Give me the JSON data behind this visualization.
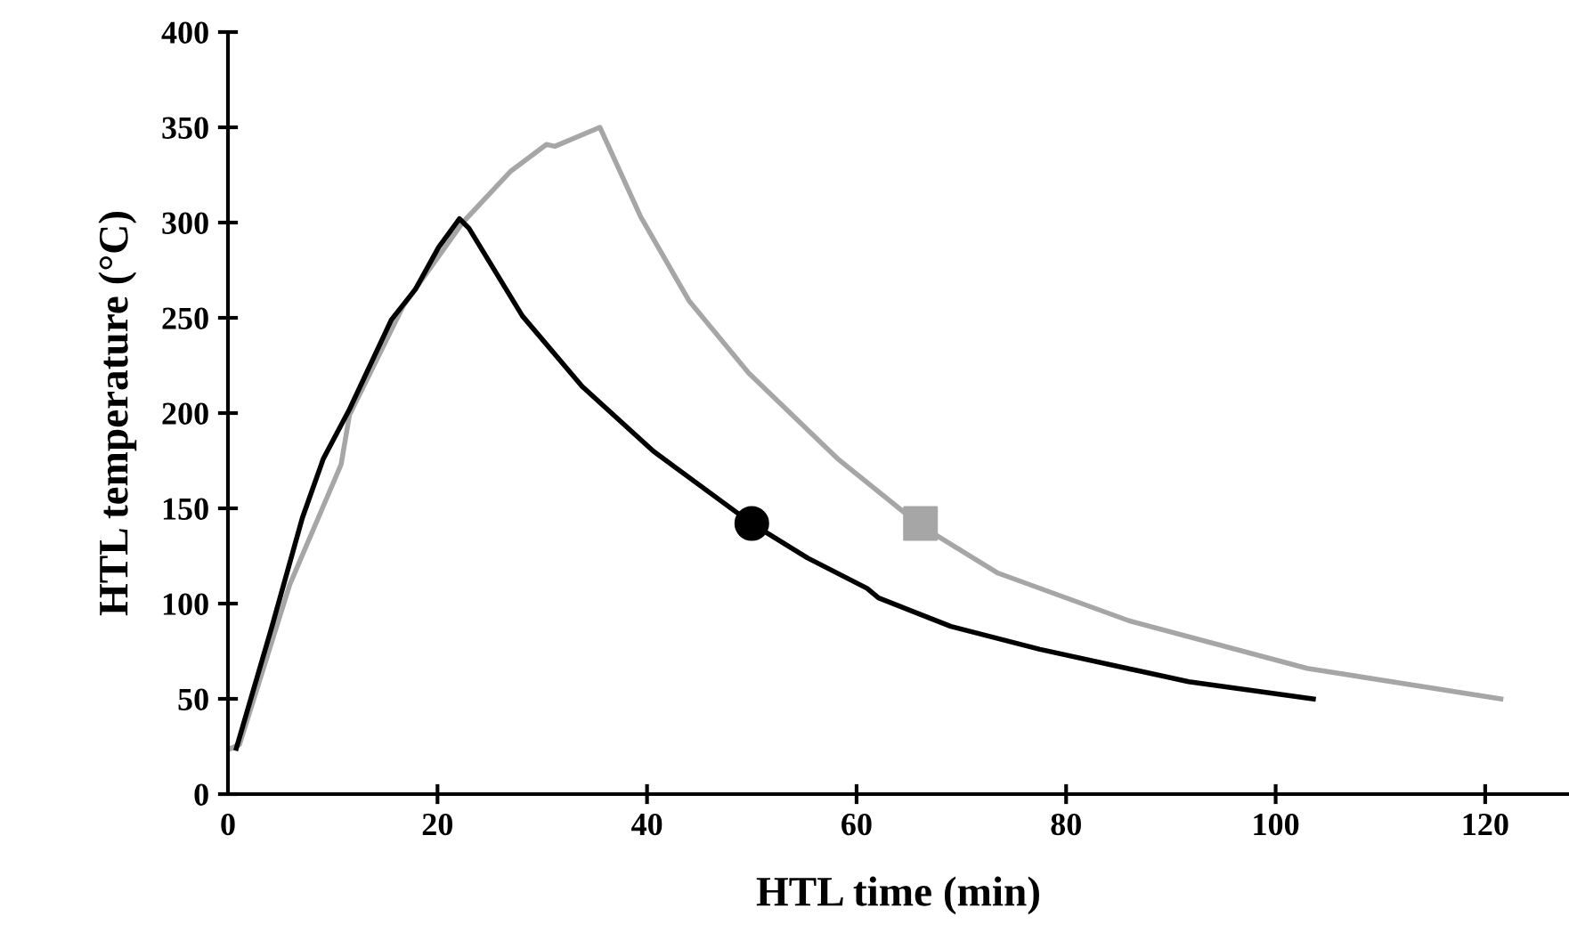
{
  "chart_data": {
    "type": "line",
    "xlabel": "HTL time (min)",
    "ylabel": "HTL temperature (°C)",
    "xlim": [
      0,
      128
    ],
    "ylim": [
      0,
      400
    ],
    "xticks": [
      0,
      20,
      40,
      60,
      80,
      100,
      120
    ],
    "yticks": [
      0,
      50,
      100,
      150,
      200,
      250,
      300,
      350,
      400
    ],
    "grid": false,
    "legend": false,
    "series": [
      {
        "color": "#a6a6a6",
        "x": [
          0.3,
          1.1,
          5.9,
          10.8,
          11.6,
          16.7,
          22.4,
          27.0,
          30.4,
          31.2,
          35.5,
          39.4,
          44.0,
          49.7,
          58.2,
          66.1,
          73.5,
          86.0,
          103.0,
          121.5
        ],
        "values": [
          24,
          26,
          110,
          173,
          199,
          256,
          300,
          327,
          341,
          340,
          350,
          303,
          259,
          221,
          176,
          141,
          116,
          91,
          66,
          50
        ]
      },
      {
        "color": "#000000",
        "x": [
          0.8,
          4.2,
          7.1,
          9.1,
          11.6,
          15.6,
          17.9,
          20.1,
          22.1,
          23.0,
          28.1,
          33.8,
          40.6,
          50.0,
          55.3,
          61.0,
          62.1,
          69.0,
          77.5,
          91.7,
          103.6
        ],
        "values": [
          24,
          88,
          145,
          176,
          202,
          249,
          265,
          287,
          302,
          297,
          251,
          214,
          180,
          142,
          124,
          108,
          103,
          88,
          76,
          59,
          50
        ]
      },
      {
        "type": "scatter",
        "marker": "circle",
        "color": "#000000",
        "x": [
          50.0
        ],
        "values": [
          142
        ]
      },
      {
        "type": "scatter",
        "marker": "square",
        "color": "#a6a6a6",
        "x": [
          66.1
        ],
        "values": [
          142
        ]
      }
    ]
  }
}
